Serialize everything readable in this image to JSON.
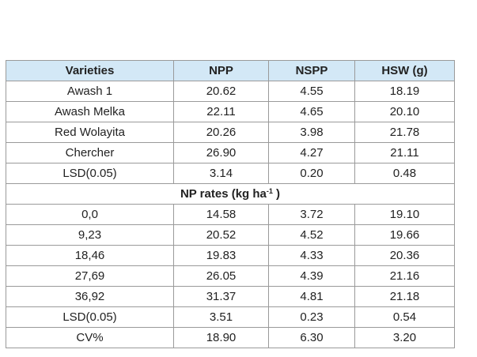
{
  "table": {
    "headers": [
      "Varieties",
      "NPP",
      "NSPP",
      "HSW (g)"
    ],
    "varieties_rows": [
      [
        "Awash 1",
        "20.62",
        "4.55",
        "18.19"
      ],
      [
        "Awash Melka",
        "22.11",
        "4.65",
        "20.10"
      ],
      [
        "Red Wolayita",
        "20.26",
        "3.98",
        "21.78"
      ],
      [
        "Chercher",
        "26.90",
        "4.27",
        "21.11"
      ],
      [
        "LSD(0.05)",
        "3.14",
        "0.20",
        "0.48"
      ]
    ],
    "section": {
      "label_main": "NP rates (kg ha",
      "label_sup": "-1",
      "label_end": " )"
    },
    "np_rows": [
      [
        "0,0",
        "14.58",
        "3.72",
        "19.10"
      ],
      [
        "9,23",
        "20.52",
        "4.52",
        "19.66"
      ],
      [
        "18,46",
        "19.83",
        "4.33",
        "20.36"
      ],
      [
        "27,69",
        "26.05",
        "4.39",
        "21.16"
      ],
      [
        "36,92",
        "31.37",
        "4.81",
        "21.18"
      ],
      [
        "LSD(0.05)",
        "3.51",
        "0.23",
        "0.54"
      ],
      [
        "CV%",
        "18.90",
        "6.30",
        "3.20"
      ]
    ]
  }
}
